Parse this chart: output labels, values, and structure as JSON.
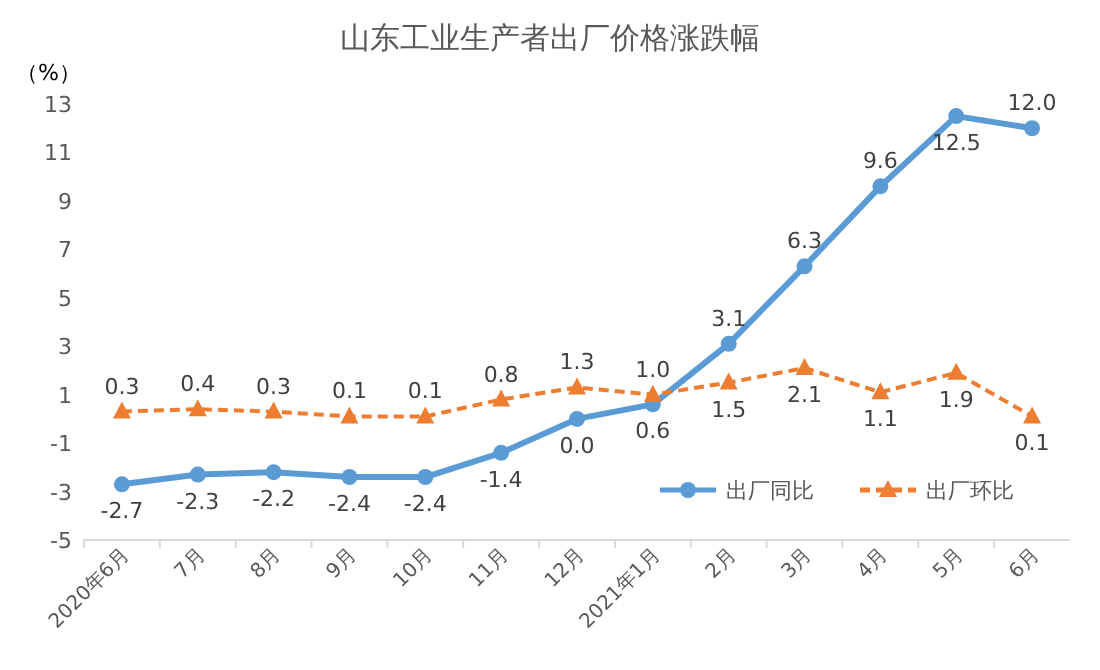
{
  "chart_data": {
    "type": "line",
    "title": "山东工业生产者出厂价格涨跌幅",
    "ylabel": "（%）",
    "categories": [
      "2020年6月",
      "7月",
      "8月",
      "9月",
      "10月",
      "11月",
      "12月",
      "2021年1月",
      "2月",
      "3月",
      "4月",
      "5月",
      "6月"
    ],
    "series": [
      {
        "name": "出厂同比",
        "color": "#5b9bd5",
        "marker": "circle",
        "line_style": "solid",
        "values": [
          -2.7,
          -2.3,
          -2.2,
          -2.4,
          -2.4,
          -1.4,
          0.0,
          0.6,
          3.1,
          6.3,
          9.6,
          12.5,
          12.0
        ],
        "value_labels": [
          "-2.7",
          "-2.3",
          "-2.2",
          "-2.4",
          "-2.4",
          "-1.4",
          "0.0",
          "0.6",
          "3.1",
          "6.3",
          "9.6",
          "12.5",
          "12.0"
        ]
      },
      {
        "name": "出厂环比",
        "color": "#ed7d31",
        "marker": "triangle",
        "line_style": "dashed",
        "values": [
          0.3,
          0.4,
          0.3,
          0.1,
          0.1,
          0.8,
          1.3,
          1.0,
          1.5,
          2.1,
          1.1,
          1.9,
          0.1
        ],
        "value_labels": [
          "0.3",
          "0.4",
          "0.3",
          "0.1",
          "0.1",
          "0.8",
          "1.3",
          "1.0",
          "1.5",
          "2.1",
          "1.1",
          "1.9",
          "0.1"
        ]
      }
    ],
    "ylim": [
      -5,
      13
    ],
    "yticks": [
      -5,
      -3,
      -1,
      1,
      3,
      5,
      7,
      9,
      11,
      13
    ],
    "grid": false,
    "legend": "bottom right"
  }
}
